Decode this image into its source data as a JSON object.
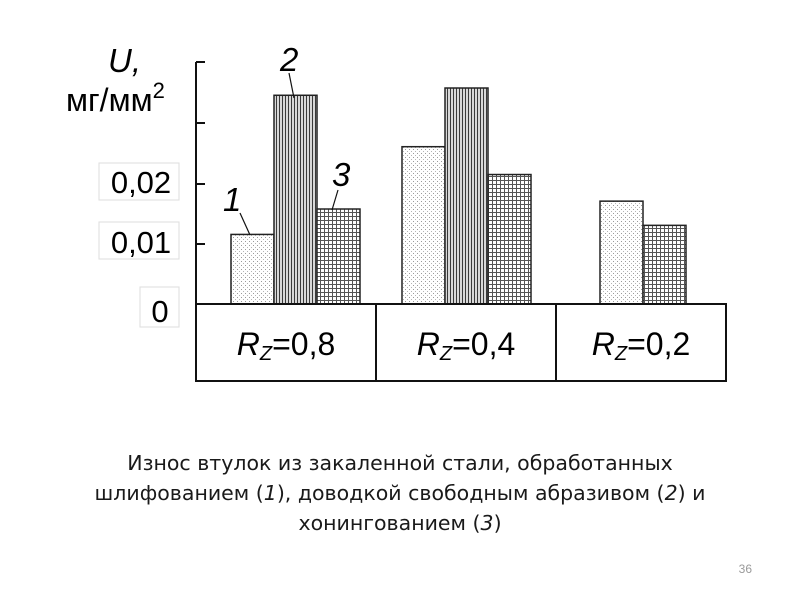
{
  "chart_data": {
    "type": "bar",
    "ylabel_symbol": "U,",
    "ylabel_unit": "мг/мм",
    "ylabel_unit_sup": "2",
    "yticks": [
      "0",
      "0,01",
      "0,02"
    ],
    "ylim": [
      0,
      0.04
    ],
    "categories": [
      {
        "prefix": "R",
        "sub": "Z",
        "value": "=0,8"
      },
      {
        "prefix": "R",
        "sub": "Z",
        "value": "=0,4"
      },
      {
        "prefix": "R",
        "sub": "Z",
        "value": "=0,2"
      }
    ],
    "series": [
      {
        "name": "1",
        "values": [
          0.0115,
          0.026,
          0.017
        ]
      },
      {
        "name": "2",
        "values": [
          0.0345,
          0.0357,
          null
        ]
      },
      {
        "name": "3",
        "values": [
          0.0157,
          0.0214,
          0.013
        ]
      }
    ],
    "series_labels_shown": [
      "1",
      "2",
      "3"
    ]
  },
  "caption": {
    "part1": "Износ втулок из закаленной стали, обработанных шлифованием (",
    "s1": "1",
    "part2": "), доводкой свободным абразивом (",
    "s2": "2",
    "part3": ") и хонингованием (",
    "s3": "3",
    "part4": ")"
  },
  "page_number": "36",
  "colors": {
    "axis": "#111111",
    "bar_stroke": "#222222"
  }
}
